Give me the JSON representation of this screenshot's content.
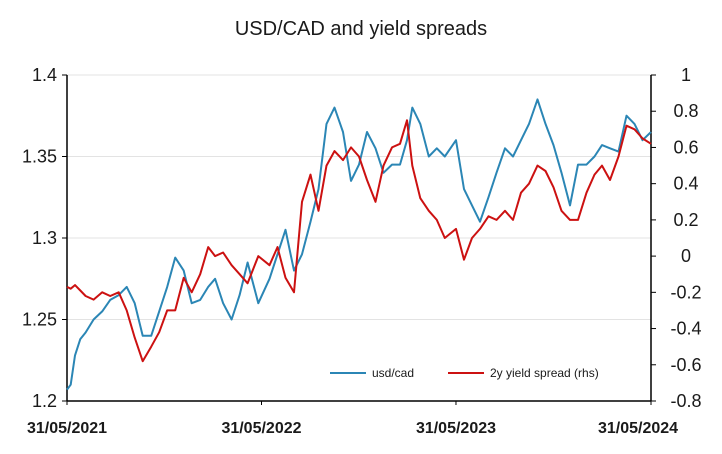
{
  "chart_data": {
    "type": "line",
    "title": "USD/CAD and yield spreads",
    "x_tick_labels": [
      "31/05/2021",
      "31/05/2022",
      "31/05/2023",
      "31/05/2024"
    ],
    "x_range": [
      "2021-05-31",
      "2024-05-31"
    ],
    "y_left": {
      "range": [
        1.2,
        1.4
      ],
      "ticks": [
        "1.2",
        "1.25",
        "1.3",
        "1.35",
        "1.4"
      ]
    },
    "y_right": {
      "range": [
        -0.8,
        1.0
      ],
      "ticks": [
        "-0.8",
        "-0.6",
        "-0.4",
        "-0.2",
        "0",
        "0.2",
        "0.4",
        "0.6",
        "0.8",
        "1"
      ]
    },
    "grid": "horizontal",
    "legend_position": "bottom-right",
    "series": [
      {
        "name": "usd/cad",
        "axis": "left",
        "color": "#2b86b5",
        "points": [
          [
            "2021-05-31",
            1.207
          ],
          [
            "2021-06-07",
            1.21
          ],
          [
            "2021-06-15",
            1.228
          ],
          [
            "2021-06-25",
            1.238
          ],
          [
            "2021-07-05",
            1.242
          ],
          [
            "2021-07-20",
            1.25
          ],
          [
            "2021-08-05",
            1.255
          ],
          [
            "2021-08-20",
            1.262
          ],
          [
            "2021-09-05",
            1.265
          ],
          [
            "2021-09-20",
            1.27
          ],
          [
            "2021-10-05",
            1.26
          ],
          [
            "2021-10-20",
            1.24
          ],
          [
            "2021-11-05",
            1.24
          ],
          [
            "2021-11-20",
            1.255
          ],
          [
            "2021-12-05",
            1.27
          ],
          [
            "2021-12-20",
            1.288
          ],
          [
            "2022-01-05",
            1.28
          ],
          [
            "2022-01-20",
            1.26
          ],
          [
            "2022-02-05",
            1.262
          ],
          [
            "2022-02-20",
            1.27
          ],
          [
            "2022-03-05",
            1.275
          ],
          [
            "2022-03-20",
            1.26
          ],
          [
            "2022-04-05",
            1.25
          ],
          [
            "2022-04-20",
            1.265
          ],
          [
            "2022-05-05",
            1.285
          ],
          [
            "2022-05-25",
            1.26
          ],
          [
            "2022-06-15",
            1.275
          ],
          [
            "2022-06-30",
            1.29
          ],
          [
            "2022-07-15",
            1.305
          ],
          [
            "2022-07-31",
            1.28
          ],
          [
            "2022-08-15",
            1.29
          ],
          [
            "2022-08-31",
            1.31
          ],
          [
            "2022-09-15",
            1.33
          ],
          [
            "2022-09-30",
            1.37
          ],
          [
            "2022-10-15",
            1.38
          ],
          [
            "2022-10-31",
            1.365
          ],
          [
            "2022-11-15",
            1.335
          ],
          [
            "2022-11-30",
            1.345
          ],
          [
            "2022-12-15",
            1.365
          ],
          [
            "2022-12-31",
            1.355
          ],
          [
            "2023-01-15",
            1.34
          ],
          [
            "2023-01-31",
            1.345
          ],
          [
            "2023-02-15",
            1.345
          ],
          [
            "2023-02-28",
            1.36
          ],
          [
            "2023-03-10",
            1.38
          ],
          [
            "2023-03-25",
            1.37
          ],
          [
            "2023-04-10",
            1.35
          ],
          [
            "2023-04-25",
            1.355
          ],
          [
            "2023-05-10",
            1.35
          ],
          [
            "2023-05-31",
            1.36
          ],
          [
            "2023-06-15",
            1.33
          ],
          [
            "2023-06-30",
            1.32
          ],
          [
            "2023-07-15",
            1.31
          ],
          [
            "2023-07-31",
            1.325
          ],
          [
            "2023-08-15",
            1.34
          ],
          [
            "2023-08-31",
            1.355
          ],
          [
            "2023-09-15",
            1.35
          ],
          [
            "2023-09-30",
            1.36
          ],
          [
            "2023-10-15",
            1.37
          ],
          [
            "2023-10-31",
            1.385
          ],
          [
            "2023-11-15",
            1.37
          ],
          [
            "2023-11-30",
            1.357
          ],
          [
            "2023-12-15",
            1.34
          ],
          [
            "2023-12-31",
            1.32
          ],
          [
            "2024-01-15",
            1.345
          ],
          [
            "2024-01-31",
            1.345
          ],
          [
            "2024-02-15",
            1.35
          ],
          [
            "2024-02-29",
            1.357
          ],
          [
            "2024-03-15",
            1.355
          ],
          [
            "2024-03-31",
            1.353
          ],
          [
            "2024-04-15",
            1.375
          ],
          [
            "2024-04-30",
            1.37
          ],
          [
            "2024-05-15",
            1.36
          ],
          [
            "2024-05-31",
            1.365
          ]
        ]
      },
      {
        "name": "2y yield spread (rhs)",
        "axis": "right",
        "color": "#cc1111",
        "points": [
          [
            "2021-05-31",
            -0.17
          ],
          [
            "2021-06-07",
            -0.18
          ],
          [
            "2021-06-15",
            -0.16
          ],
          [
            "2021-06-25",
            -0.19
          ],
          [
            "2021-07-05",
            -0.22
          ],
          [
            "2021-07-20",
            -0.24
          ],
          [
            "2021-08-05",
            -0.2
          ],
          [
            "2021-08-20",
            -0.22
          ],
          [
            "2021-09-05",
            -0.2
          ],
          [
            "2021-09-20",
            -0.3
          ],
          [
            "2021-10-05",
            -0.45
          ],
          [
            "2021-10-20",
            -0.58
          ],
          [
            "2021-11-05",
            -0.5
          ],
          [
            "2021-11-20",
            -0.42
          ],
          [
            "2021-12-05",
            -0.3
          ],
          [
            "2021-12-20",
            -0.3
          ],
          [
            "2022-01-05",
            -0.12
          ],
          [
            "2022-01-20",
            -0.2
          ],
          [
            "2022-02-05",
            -0.1
          ],
          [
            "2022-02-20",
            0.05
          ],
          [
            "2022-03-05",
            0.0
          ],
          [
            "2022-03-20",
            0.02
          ],
          [
            "2022-04-05",
            -0.05
          ],
          [
            "2022-04-20",
            -0.1
          ],
          [
            "2022-05-05",
            -0.15
          ],
          [
            "2022-05-25",
            0.0
          ],
          [
            "2022-06-15",
            -0.05
          ],
          [
            "2022-06-30",
            0.05
          ],
          [
            "2022-07-15",
            -0.12
          ],
          [
            "2022-07-31",
            -0.2
          ],
          [
            "2022-08-15",
            0.3
          ],
          [
            "2022-08-31",
            0.45
          ],
          [
            "2022-09-15",
            0.25
          ],
          [
            "2022-09-30",
            0.5
          ],
          [
            "2022-10-15",
            0.58
          ],
          [
            "2022-10-31",
            0.53
          ],
          [
            "2022-11-15",
            0.6
          ],
          [
            "2022-11-30",
            0.55
          ],
          [
            "2022-12-15",
            0.42
          ],
          [
            "2022-12-31",
            0.3
          ],
          [
            "2023-01-15",
            0.5
          ],
          [
            "2023-01-31",
            0.6
          ],
          [
            "2023-02-15",
            0.62
          ],
          [
            "2023-02-28",
            0.75
          ],
          [
            "2023-03-10",
            0.5
          ],
          [
            "2023-03-25",
            0.32
          ],
          [
            "2023-04-10",
            0.25
          ],
          [
            "2023-04-25",
            0.2
          ],
          [
            "2023-05-10",
            0.1
          ],
          [
            "2023-05-31",
            0.15
          ],
          [
            "2023-06-15",
            -0.02
          ],
          [
            "2023-06-30",
            0.1
          ],
          [
            "2023-07-15",
            0.15
          ],
          [
            "2023-07-31",
            0.22
          ],
          [
            "2023-08-15",
            0.2
          ],
          [
            "2023-08-31",
            0.25
          ],
          [
            "2023-09-15",
            0.2
          ],
          [
            "2023-09-30",
            0.35
          ],
          [
            "2023-10-15",
            0.4
          ],
          [
            "2023-10-31",
            0.5
          ],
          [
            "2023-11-15",
            0.47
          ],
          [
            "2023-11-30",
            0.38
          ],
          [
            "2023-12-15",
            0.25
          ],
          [
            "2023-12-31",
            0.2
          ],
          [
            "2024-01-15",
            0.2
          ],
          [
            "2024-01-31",
            0.35
          ],
          [
            "2024-02-15",
            0.45
          ],
          [
            "2024-02-29",
            0.5
          ],
          [
            "2024-03-15",
            0.42
          ],
          [
            "2024-03-31",
            0.55
          ],
          [
            "2024-04-15",
            0.72
          ],
          [
            "2024-04-30",
            0.7
          ],
          [
            "2024-05-15",
            0.65
          ],
          [
            "2024-05-31",
            0.62
          ]
        ]
      }
    ]
  }
}
